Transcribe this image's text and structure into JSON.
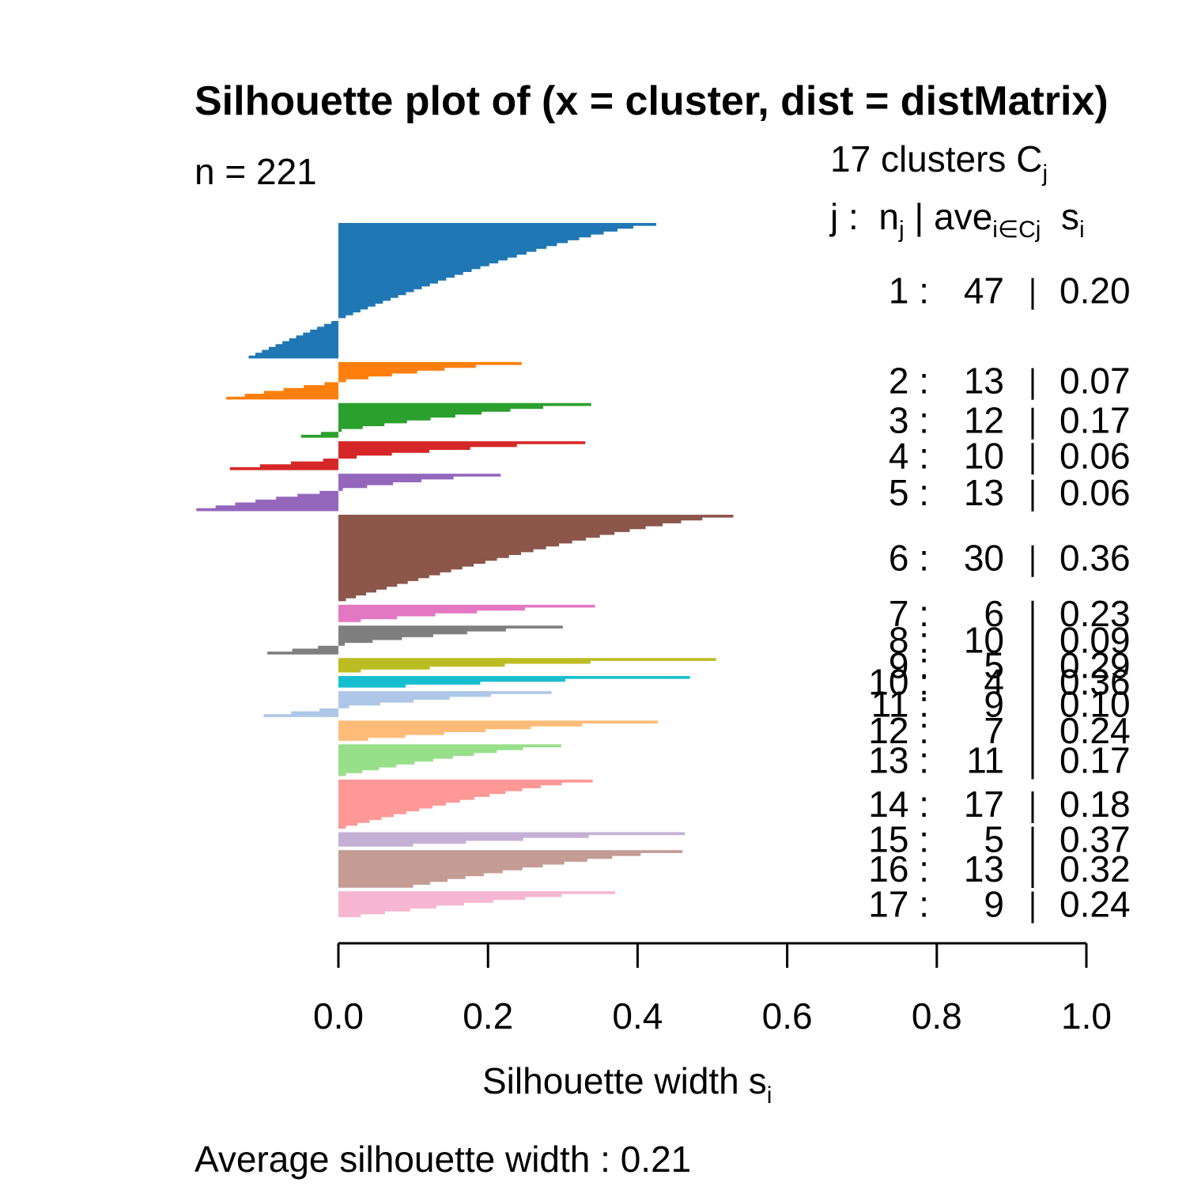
{
  "chart_data": {
    "type": "bar",
    "title": "Silhouette plot of (x = cluster, dist = distMatrix)",
    "n_label": "n = 221",
    "xlabel": "Silhouette width",
    "xlabel_sub": "i",
    "xlabel_var": "s",
    "xlim": [
      0.0,
      1.0
    ],
    "x_ticks": [
      "0.0",
      "0.2",
      "0.4",
      "0.6",
      "0.8",
      "1.0"
    ],
    "legend_header": {
      "line1": "17  clusters  C",
      "line1_sub": "j",
      "line2_a": "j :  n",
      "line2_a_sub": "j",
      "line2_b": " | ave",
      "line2_b_sub": "i∈Cj",
      "line2_c": "  s",
      "line2_c_sub": "i"
    },
    "footer": "Average silhouette width :  0.21",
    "clusters": [
      {
        "id": "1",
        "n": "47",
        "ave": "0.20",
        "color": "#1f77b4",
        "max": 0.425,
        "min": -0.12
      },
      {
        "id": "2",
        "n": "13",
        "ave": "0.07",
        "color": "#ff7f0e",
        "max": 0.245,
        "min": -0.15
      },
      {
        "id": "3",
        "n": "12",
        "ave": "0.17",
        "color": "#2ca02c",
        "max": 0.338,
        "min": -0.05
      },
      {
        "id": "4",
        "n": "10",
        "ave": "0.06",
        "color": "#d62728",
        "max": 0.33,
        "min": -0.145
      },
      {
        "id": "5",
        "n": "13",
        "ave": "0.06",
        "color": "#9467bd",
        "max": 0.217,
        "min": -0.19
      },
      {
        "id": "6",
        "n": "30",
        "ave": "0.36",
        "color": "#8c564b",
        "max": 0.528,
        "min": 0.01
      },
      {
        "id": "7",
        "n": "6",
        "ave": "0.23",
        "color": "#e377c2",
        "max": 0.343,
        "min": 0.03
      },
      {
        "id": "8",
        "n": "10",
        "ave": "0.09",
        "color": "#7f7f7f",
        "max": 0.3,
        "min": -0.095
      },
      {
        "id": "9",
        "n": "5",
        "ave": "0.29",
        "color": "#bcbd22",
        "max": 0.505,
        "min": 0.03
      },
      {
        "id": "10",
        "n": "4",
        "ave": "0.36",
        "color": "#17becf",
        "max": 0.47,
        "min": 0.09
      },
      {
        "id": "11",
        "n": "9",
        "ave": "0.10",
        "color": "#aec7e8",
        "max": 0.285,
        "min": -0.1
      },
      {
        "id": "12",
        "n": "7",
        "ave": "0.24",
        "color": "#ffbb78",
        "max": 0.427,
        "min": 0.04
      },
      {
        "id": "13",
        "n": "11",
        "ave": "0.17",
        "color": "#98df8a",
        "max": 0.298,
        "min": 0.01
      },
      {
        "id": "14",
        "n": "17",
        "ave": "0.18",
        "color": "#ff9896",
        "max": 0.34,
        "min": 0.01
      },
      {
        "id": "15",
        "n": "5",
        "ave": "0.37",
        "color": "#c5b0d5",
        "max": 0.463,
        "min": 0.1
      },
      {
        "id": "16",
        "n": "13",
        "ave": "0.32",
        "color": "#c49c94",
        "max": 0.46,
        "min": 0.1
      },
      {
        "id": "17",
        "n": "9",
        "ave": "0.24",
        "color": "#f7b6d2",
        "max": 0.37,
        "min": 0.03
      }
    ]
  }
}
